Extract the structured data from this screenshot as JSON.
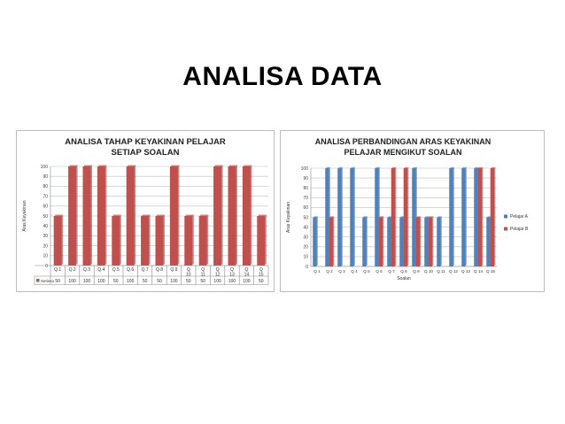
{
  "slide": {
    "title": "ANALISA DATA"
  },
  "colors": {
    "red": "#c0504d",
    "red_dark": "#8c3533",
    "blue": "#4f81bd",
    "blue_dark": "#2f5b8f",
    "grid": "#bfbfbf",
    "title_color": "#1f1f1f"
  },
  "chart_data": [
    {
      "type": "bar",
      "title_lines": [
        "ANALISA TAHAP KEYAKINAN PELAJAR",
        "SETIAP SOALAN"
      ],
      "ylabel": "Aras Keyakinan",
      "xlabel": "",
      "ylim": [
        0,
        100
      ],
      "yticks": [
        0,
        10,
        20,
        30,
        40,
        50,
        60,
        70,
        80,
        90,
        100
      ],
      "grid": true,
      "categories": [
        "Q.1",
        "Q.2",
        "Q.3",
        "Q.4",
        "Q.5",
        "Q.6",
        "Q.7",
        "Q.8",
        "Q.9",
        "Q 10",
        "Q 11",
        "Q 12",
        "Q 13",
        "Q 14",
        "Q 15"
      ],
      "series": [
        {
          "name": "Series1",
          "values": [
            50,
            100,
            100,
            100,
            50,
            100,
            50,
            50,
            100,
            50,
            50,
            100,
            100,
            100,
            50
          ]
        }
      ],
      "table_values": [
        "50",
        "100",
        "100",
        "100",
        "50",
        "100",
        "50",
        "50",
        "100",
        "50",
        "50",
        "100",
        "100",
        "100",
        "50"
      ],
      "legend": "table"
    },
    {
      "type": "bar",
      "title_lines": [
        "ANALISA PERBANDINGAN ARAS KEYAKINAN",
        "PELAJAR MENGIKUT SOALAN"
      ],
      "ylabel": "Aras Keyakinan",
      "xlabel": "Soalan",
      "ylim": [
        0,
        100
      ],
      "yticks": [
        0,
        10,
        20,
        30,
        40,
        50,
        60,
        70,
        80,
        90,
        100
      ],
      "grid": true,
      "categories": [
        "Q 1",
        "Q 2",
        "Q 3",
        "Q 4",
        "Q 5",
        "Q 6",
        "Q 7",
        "Q 8",
        "Q 9",
        "Q 10",
        "Q 11",
        "Q 12",
        "Q 13",
        "Q 14",
        "Q 15"
      ],
      "series": [
        {
          "name": "Pelajar A",
          "values": [
            50,
            100,
            100,
            100,
            50,
            100,
            50,
            50,
            100,
            50,
            50,
            100,
            100,
            100,
            50
          ]
        },
        {
          "name": "Pelajar B",
          "values": [
            0,
            50,
            0,
            0,
            0,
            50,
            100,
            100,
            50,
            50,
            0,
            0,
            0,
            100,
            100
          ]
        }
      ],
      "legend": "right"
    }
  ]
}
